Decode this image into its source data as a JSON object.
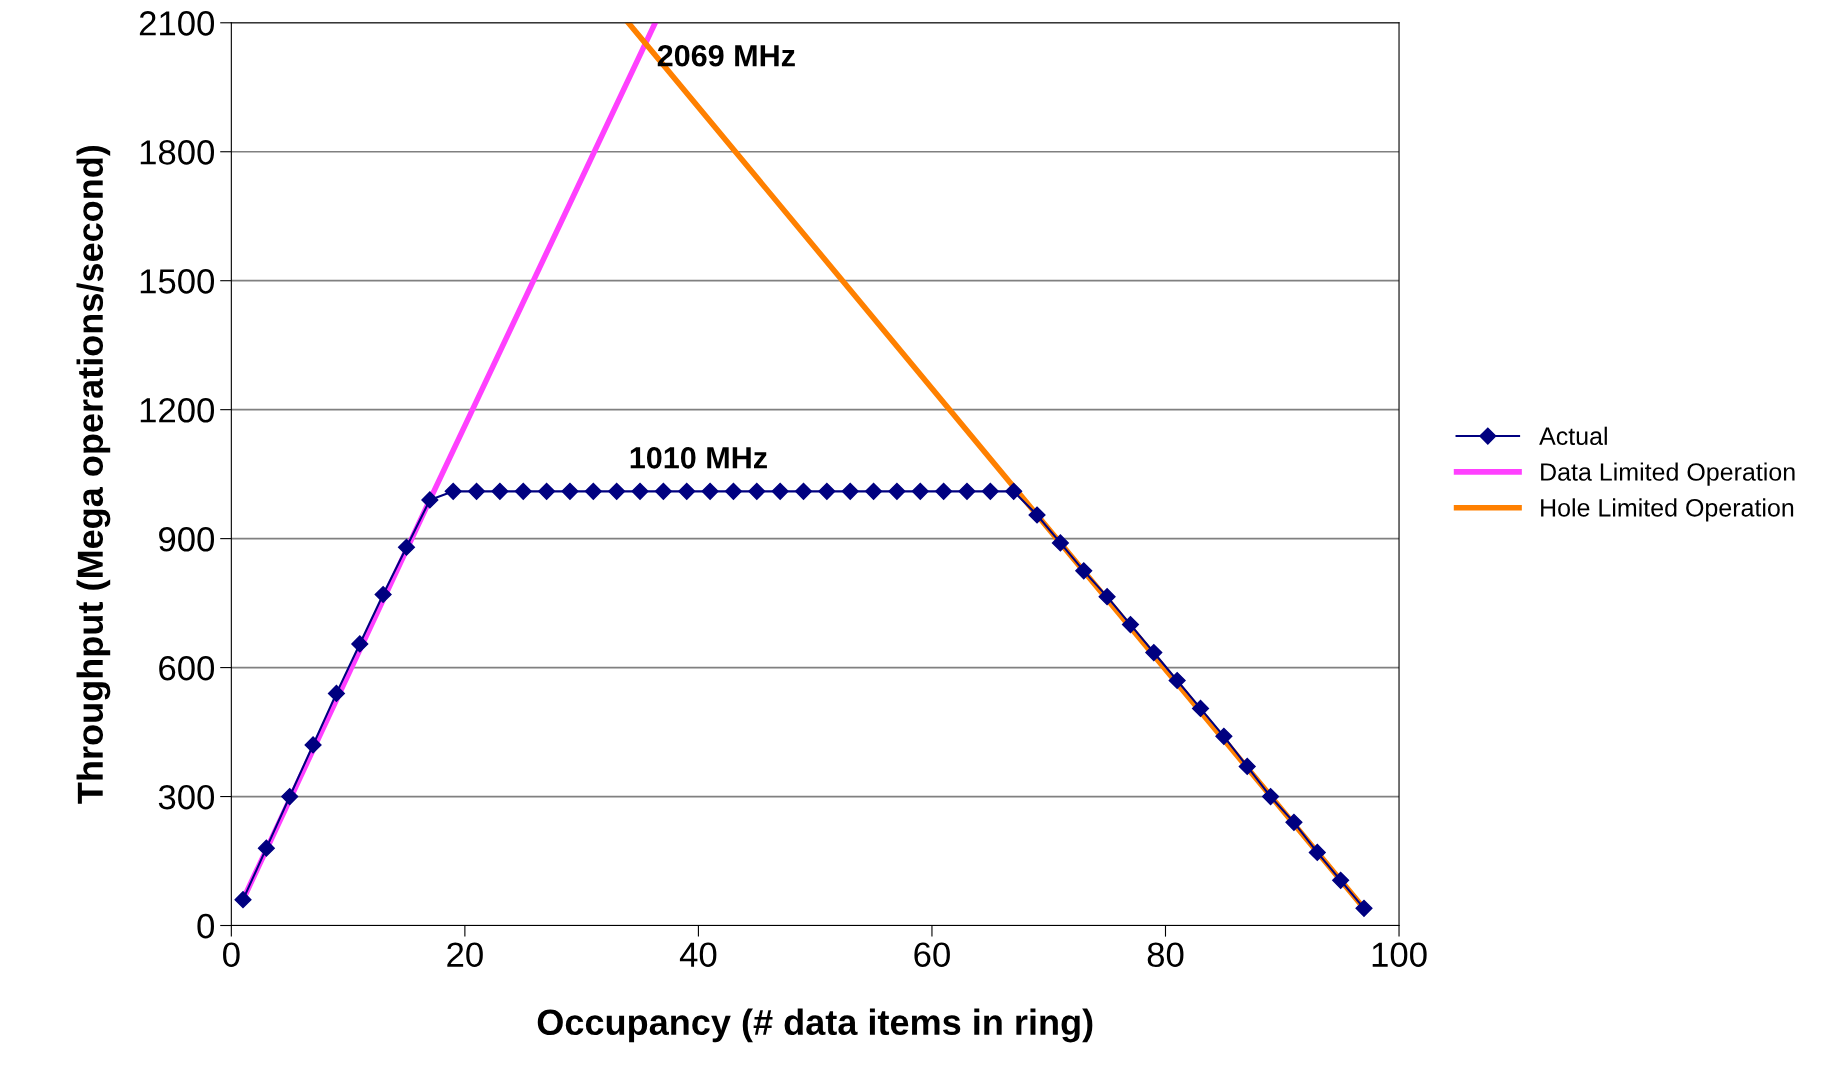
{
  "chart_data": {
    "type": "line",
    "xlabel": "Occupancy (# data items in ring)",
    "ylabel": "Throughput (Mega operations/second)",
    "xlim": [
      0,
      100
    ],
    "xticks": [
      0,
      20,
      40,
      60,
      80,
      100
    ],
    "ylim": [
      0,
      2100
    ],
    "yticks": [
      0,
      300,
      600,
      900,
      1200,
      1500,
      1800,
      2100
    ],
    "grid": "y",
    "legend": "right",
    "series": [
      {
        "name": "Actual",
        "color": "#000080",
        "marker": "diamond",
        "x": [
          1,
          3,
          5,
          7,
          9,
          11,
          13,
          15,
          17,
          19,
          21,
          23,
          25,
          27,
          29,
          31,
          33,
          35,
          37,
          39,
          41,
          43,
          45,
          47,
          49,
          51,
          53,
          55,
          57,
          59,
          61,
          63,
          65,
          67,
          69,
          71,
          73,
          75,
          77,
          79,
          81,
          83,
          85,
          87,
          89,
          91,
          93,
          95,
          97
        ],
        "values": [
          60,
          180,
          300,
          420,
          540,
          655,
          770,
          880,
          990,
          1010,
          1010,
          1010,
          1010,
          1010,
          1010,
          1010,
          1010,
          1010,
          1010,
          1010,
          1010,
          1010,
          1010,
          1010,
          1010,
          1010,
          1010,
          1010,
          1010,
          1010,
          1010,
          1010,
          1010,
          1010,
          955,
          890,
          825,
          765,
          700,
          635,
          570,
          505,
          440,
          370,
          300,
          240,
          170,
          105,
          40
        ]
      },
      {
        "name": "Data Limited Operation",
        "color": "#ff40ff",
        "x": [
          1,
          17,
          36.3
        ],
        "values": [
          60,
          990,
          2100
        ]
      },
      {
        "name": "Hole Limited Operation",
        "color": "#ff8000",
        "x": [
          34,
          69,
          97
        ],
        "values": [
          2100,
          955,
          40
        ]
      }
    ],
    "annotations": [
      {
        "text": "2069 MHz",
        "x": 35,
        "y": 2069
      },
      {
        "text": "1010 MHz",
        "x": 40,
        "y": 1010
      }
    ]
  }
}
